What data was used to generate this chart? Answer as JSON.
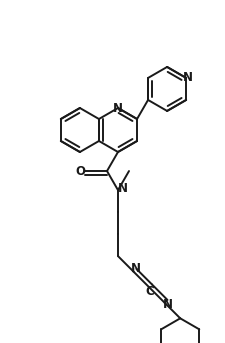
{
  "bg_color": "#ffffff",
  "line_color": "#1a1a1a",
  "lw": 1.4,
  "figsize": [
    2.25,
    3.43
  ],
  "dpi": 100,
  "xlim": [
    0,
    225
  ],
  "ylim": [
    0,
    343
  ]
}
